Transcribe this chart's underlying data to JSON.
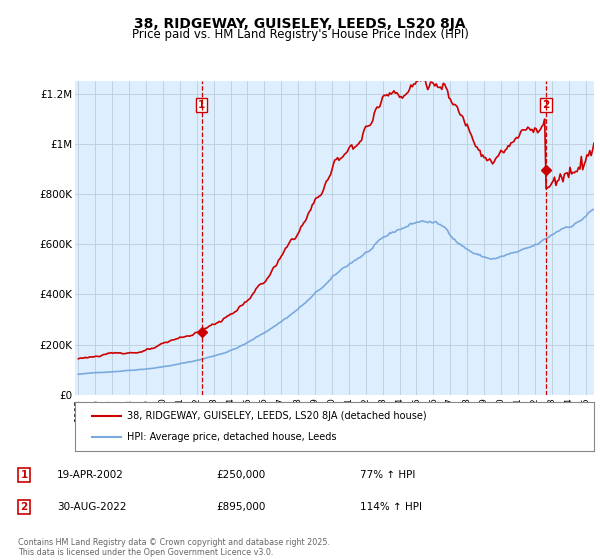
{
  "title": "38, RIDGEWAY, GUISELEY, LEEDS, LS20 8JA",
  "subtitle": "Price paid vs. HM Land Registry's House Price Index (HPI)",
  "legend_line1": "38, RIDGEWAY, GUISELEY, LEEDS, LS20 8JA (detached house)",
  "legend_line2": "HPI: Average price, detached house, Leeds",
  "footer": "Contains HM Land Registry data © Crown copyright and database right 2025.\nThis data is licensed under the Open Government Licence v3.0.",
  "sale1_date": "19-APR-2002",
  "sale1_price": "£250,000",
  "sale1_hpi": "77% ↑ HPI",
  "sale2_date": "30-AUG-2022",
  "sale2_price": "£895,000",
  "sale2_hpi": "114% ↑ HPI",
  "sale1_x": 2002.29,
  "sale1_y": 250000,
  "sale2_x": 2022.66,
  "sale2_y": 895000,
  "hpi_color": "#7aaadd",
  "house_color": "#cc0000",
  "vline_color": "#cc0000",
  "grid_color": "#bbccdd",
  "plot_bg": "#ddeeff",
  "ylim": [
    0,
    1250000
  ],
  "yticks": [
    0,
    200000,
    400000,
    600000,
    800000,
    1000000,
    1200000
  ],
  "ytick_labels": [
    "£0",
    "£200K",
    "£400K",
    "£600K",
    "£800K",
    "£1M",
    "£1.2M"
  ],
  "xmin": 1994.8,
  "xmax": 2025.5,
  "title_fontsize": 10,
  "subtitle_fontsize": 8.5
}
